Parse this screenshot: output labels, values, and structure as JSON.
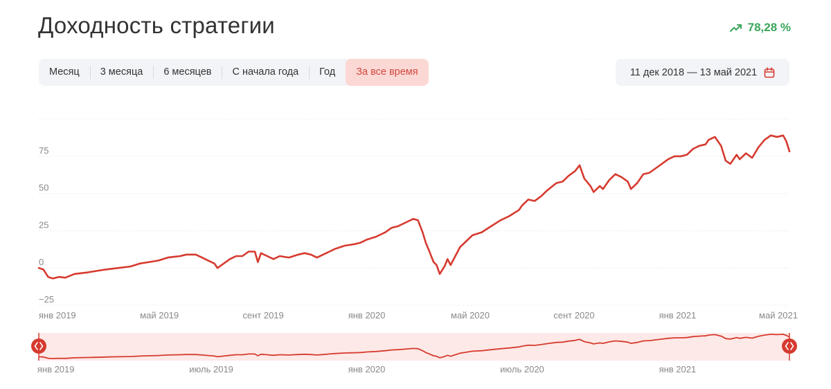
{
  "colors": {
    "accent": "#d63a2f",
    "active_bg": "#fcd8d5",
    "active_text": "#d0483d",
    "positive": "#3aa55a",
    "navigator_fill": "#fde9e7"
  },
  "header": {
    "title": "Доходность стратегии",
    "return_value": "78,28 %",
    "return_icon": "trend-up-icon"
  },
  "periods": [
    {
      "label": "Месяц"
    },
    {
      "label": "3 месяца"
    },
    {
      "label": "6 месяцев"
    },
    {
      "label": "С начала года"
    },
    {
      "label": "Год"
    },
    {
      "label": "За все время",
      "active": true
    }
  ],
  "date_range": {
    "label": "11 дек 2018 — 13 май 2021",
    "icon": "calendar-icon"
  },
  "chart_data": {
    "type": "line",
    "title": "Доходность стратегии",
    "xlabel": "",
    "ylabel": "",
    "ylim": [
      -25,
      100
    ],
    "y_ticks": [
      {
        "value": 75,
        "label": "75"
      },
      {
        "value": 50,
        "label": "50"
      },
      {
        "value": 25,
        "label": "25"
      },
      {
        "value": 0,
        "label": "0"
      },
      {
        "value": -25,
        "label": "−25"
      }
    ],
    "x_ticks": [
      {
        "value": 2019.0,
        "label": "янв 2019"
      },
      {
        "value": 2019.333,
        "label": "май 2019"
      },
      {
        "value": 2019.667,
        "label": "сент 2019"
      },
      {
        "value": 2020.0,
        "label": "янв 2020"
      },
      {
        "value": 2020.333,
        "label": "май 2020"
      },
      {
        "value": 2020.667,
        "label": "сент 2020"
      },
      {
        "value": 2021.0,
        "label": "янв 2021"
      },
      {
        "value": 2021.333,
        "label": "май 2021"
      }
    ],
    "navigator_ticks": [
      {
        "value": 2019.0,
        "label": "янв 2019"
      },
      {
        "value": 2019.5,
        "label": "июль 2019"
      },
      {
        "value": 2020.0,
        "label": "янв 2020"
      },
      {
        "value": 2020.5,
        "label": "июль 2020"
      },
      {
        "value": 2021.0,
        "label": "янв 2021"
      }
    ],
    "series": [
      {
        "name": "Доходность стратегии",
        "unit": "%",
        "points": [
          [
            2018.945,
            0
          ],
          [
            2018.96,
            -1
          ],
          [
            2018.975,
            -6
          ],
          [
            2018.99,
            -7
          ],
          [
            2019.01,
            -6
          ],
          [
            2019.03,
            -6.5
          ],
          [
            2019.06,
            -4
          ],
          [
            2019.1,
            -3
          ],
          [
            2019.13,
            -2
          ],
          [
            2019.16,
            -1
          ],
          [
            2019.2,
            0
          ],
          [
            2019.24,
            1
          ],
          [
            2019.27,
            3
          ],
          [
            2019.3,
            4
          ],
          [
            2019.33,
            5
          ],
          [
            2019.36,
            7
          ],
          [
            2019.4,
            8
          ],
          [
            2019.42,
            9
          ],
          [
            2019.45,
            9
          ],
          [
            2019.47,
            7
          ],
          [
            2019.49,
            5
          ],
          [
            2019.51,
            3
          ],
          [
            2019.52,
            0
          ],
          [
            2019.54,
            3
          ],
          [
            2019.56,
            6
          ],
          [
            2019.58,
            8
          ],
          [
            2019.6,
            8
          ],
          [
            2019.62,
            11
          ],
          [
            2019.64,
            11
          ],
          [
            2019.65,
            4
          ],
          [
            2019.66,
            10
          ],
          [
            2019.68,
            8
          ],
          [
            2019.7,
            6
          ],
          [
            2019.72,
            8
          ],
          [
            2019.75,
            7
          ],
          [
            2019.78,
            9
          ],
          [
            2019.8,
            10
          ],
          [
            2019.82,
            9
          ],
          [
            2019.84,
            7
          ],
          [
            2019.86,
            9
          ],
          [
            2019.88,
            11
          ],
          [
            2019.9,
            13
          ],
          [
            2019.93,
            15
          ],
          [
            2019.96,
            16
          ],
          [
            2019.98,
            17
          ],
          [
            2020.0,
            19
          ],
          [
            2020.03,
            21
          ],
          [
            2020.06,
            24
          ],
          [
            2020.08,
            27
          ],
          [
            2020.1,
            28
          ],
          [
            2020.13,
            31
          ],
          [
            2020.15,
            33
          ],
          [
            2020.165,
            32
          ],
          [
            2020.18,
            24
          ],
          [
            2020.19,
            17
          ],
          [
            2020.2,
            12
          ],
          [
            2020.215,
            4
          ],
          [
            2020.225,
            2
          ],
          [
            2020.235,
            -4
          ],
          [
            2020.25,
            1
          ],
          [
            2020.26,
            6
          ],
          [
            2020.27,
            2
          ],
          [
            2020.285,
            8
          ],
          [
            2020.3,
            14
          ],
          [
            2020.32,
            18
          ],
          [
            2020.34,
            22
          ],
          [
            2020.37,
            24
          ],
          [
            2020.4,
            28
          ],
          [
            2020.43,
            32
          ],
          [
            2020.46,
            35
          ],
          [
            2020.49,
            39
          ],
          [
            2020.5,
            42
          ],
          [
            2020.52,
            46
          ],
          [
            2020.54,
            45
          ],
          [
            2020.56,
            48
          ],
          [
            2020.58,
            52
          ],
          [
            2020.61,
            57
          ],
          [
            2020.63,
            58
          ],
          [
            2020.65,
            62
          ],
          [
            2020.67,
            65
          ],
          [
            2020.685,
            69
          ],
          [
            2020.7,
            60
          ],
          [
            2020.72,
            55
          ],
          [
            2020.73,
            51
          ],
          [
            2020.75,
            55
          ],
          [
            2020.76,
            53
          ],
          [
            2020.78,
            59
          ],
          [
            2020.8,
            63
          ],
          [
            2020.82,
            61
          ],
          [
            2020.84,
            58
          ],
          [
            2020.85,
            53
          ],
          [
            2020.87,
            57
          ],
          [
            2020.89,
            63
          ],
          [
            2020.91,
            64
          ],
          [
            2020.93,
            67
          ],
          [
            2020.95,
            70
          ],
          [
            2020.97,
            73
          ],
          [
            2020.99,
            75
          ],
          [
            2021.01,
            75
          ],
          [
            2021.03,
            76
          ],
          [
            2021.05,
            80
          ],
          [
            2021.07,
            82
          ],
          [
            2021.09,
            83
          ],
          [
            2021.1,
            86
          ],
          [
            2021.12,
            88
          ],
          [
            2021.14,
            82
          ],
          [
            2021.155,
            72
          ],
          [
            2021.17,
            70
          ],
          [
            2021.19,
            76
          ],
          [
            2021.2,
            73
          ],
          [
            2021.22,
            77
          ],
          [
            2021.24,
            74
          ],
          [
            2021.26,
            81
          ],
          [
            2021.28,
            86
          ],
          [
            2021.3,
            89
          ],
          [
            2021.32,
            88
          ],
          [
            2021.34,
            89
          ],
          [
            2021.35,
            85
          ],
          [
            2021.36,
            78.28
          ]
        ]
      }
    ]
  }
}
